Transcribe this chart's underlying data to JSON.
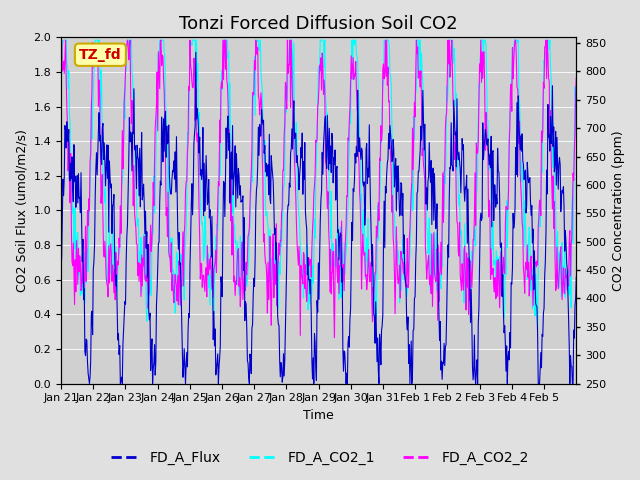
{
  "title": "Tonzi Forced Diffusion Soil CO2",
  "xlabel": "Time",
  "ylabel_left": "CO2 Soil Flux (umol/m2/s)",
  "ylabel_right": "CO2 Concentration (ppm)",
  "ylim_left": [
    0.0,
    2.0
  ],
  "ylim_right": [
    250,
    860
  ],
  "fig_bg_color": "#e0e0e0",
  "plot_bg_color": "#d0d0d0",
  "flux_color": "#0000cc",
  "co2_1_color": "#00ffff",
  "co2_2_color": "#ff00ff",
  "legend_labels": [
    "FD_A_Flux",
    "FD_A_CO2_1",
    "FD_A_CO2_2"
  ],
  "text_box_label": "TZ_fd",
  "text_box_bg": "#ffffaa",
  "text_box_edge": "#ccaa00",
  "text_box_text_color": "#cc0000",
  "xtick_labels": [
    "Jan 21",
    "Jan 22",
    "Jan 23",
    "Jan 24",
    "Jan 25",
    "Jan 26",
    "Jan 27",
    "Jan 28",
    "Jan 29",
    "Jan 30",
    "Jan 31",
    "Feb 1",
    "Feb 2",
    "Feb 3",
    "Feb 4",
    "Feb 5"
  ],
  "right_yticks": [
    250,
    300,
    350,
    400,
    450,
    500,
    550,
    600,
    650,
    700,
    750,
    800,
    850
  ],
  "left_yticks": [
    0.0,
    0.2,
    0.4,
    0.6,
    0.8,
    1.0,
    1.2,
    1.4,
    1.6,
    1.8,
    2.0
  ],
  "title_fontsize": 13,
  "axis_label_fontsize": 9,
  "tick_fontsize": 8,
  "legend_fontsize": 10
}
